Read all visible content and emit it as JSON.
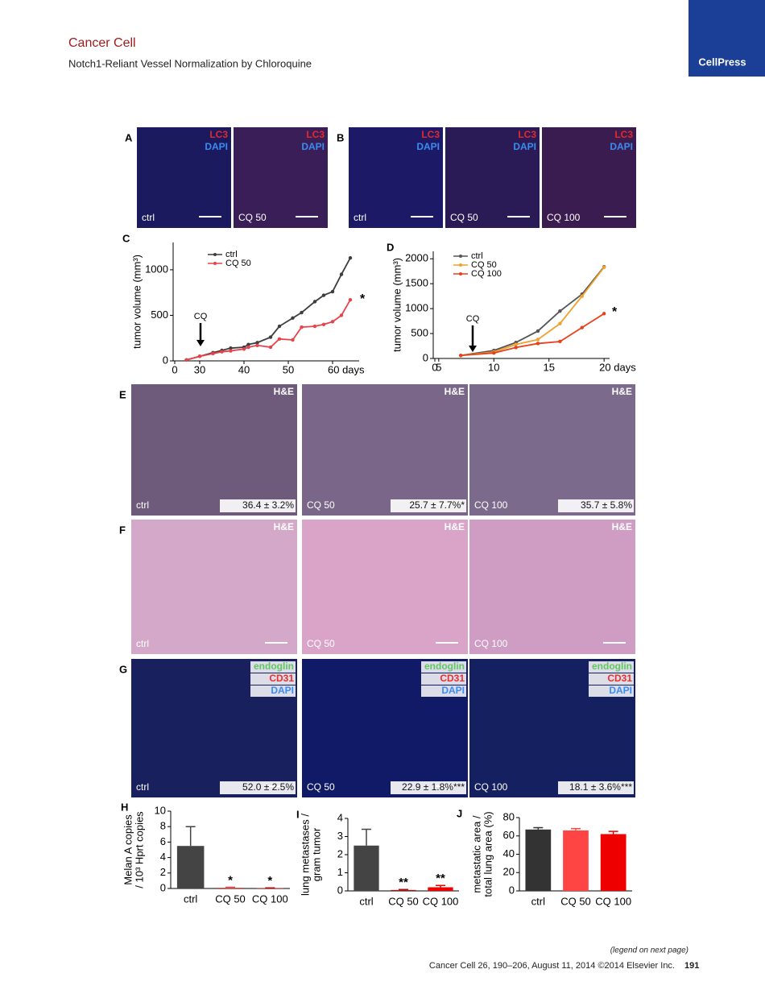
{
  "header": {
    "journal": "Cancer Cell",
    "title": "Notch1-Reliant Vessel Normalization by Chloroquine",
    "brand": "CellPress"
  },
  "panels": [
    {
      "letter": "A",
      "images": [
        {
          "stains": [
            "LC3",
            "DAPI"
          ],
          "label": "ctrl"
        },
        {
          "stains": [
            "LC3",
            "DAPI"
          ],
          "label": "CQ 50"
        }
      ]
    },
    {
      "letter": "B",
      "images": [
        {
          "stains": [
            "LC3",
            "DAPI"
          ],
          "label": "ctrl"
        },
        {
          "stains": [
            "LC3",
            "DAPI"
          ],
          "label": "CQ 50"
        },
        {
          "stains": [
            "LC3",
            "DAPI"
          ],
          "label": "CQ 100"
        }
      ]
    },
    {
      "letter": "E",
      "images": [
        {
          "stains": [
            "H&E"
          ],
          "label": "ctrl",
          "quant": "36.4 ± 3.2%"
        },
        {
          "stains": [
            "H&E"
          ],
          "label": "CQ 50",
          "quant": "25.7 ± 7.7%*"
        },
        {
          "stains": [
            "H&E"
          ],
          "label": "CQ 100",
          "quant": "35.7 ± 5.8%"
        }
      ]
    },
    {
      "letter": "F",
      "images": [
        {
          "stains": [
            "H&E"
          ],
          "label": "ctrl"
        },
        {
          "stains": [
            "H&E"
          ],
          "label": "CQ 50"
        },
        {
          "stains": [
            "H&E"
          ],
          "label": "CQ 100"
        }
      ]
    },
    {
      "letter": "G",
      "images": [
        {
          "stains": [
            "endoglin",
            "CD31",
            "DAPI"
          ],
          "label": "ctrl",
          "quant": "52.0 ± 2.5%"
        },
        {
          "stains": [
            "endoglin",
            "CD31",
            "DAPI"
          ],
          "label": "CQ 50",
          "quant": "22.9 ± 1.8%***"
        },
        {
          "stains": [
            "endoglin",
            "CD31",
            "DAPI"
          ],
          "label": "CQ 100",
          "quant": "18.1 ± 3.6%***"
        }
      ]
    }
  ],
  "chart_data": [
    {
      "type": "line",
      "panel": "C",
      "ylabel": [
        "tumor volume (mm³)"
      ],
      "legend": "upper left",
      "x": [
        27,
        30,
        33,
        35,
        37,
        40,
        41,
        43,
        46,
        48,
        51,
        53,
        56,
        58,
        60,
        62,
        64
      ],
      "xlim": [
        24,
        66
      ],
      "x_axis_break": true,
      "xticks": [
        0,
        30,
        40,
        50,
        {
          "value": 60,
          "label": "60 days"
        }
      ],
      "ylim": [
        0,
        1300
      ],
      "yticks": [
        0,
        500,
        1000
      ],
      "annotations": [
        "CQ",
        "*"
      ],
      "series": [
        {
          "name": "ctrl",
          "color": "#3d3d3d",
          "values": [
            10,
            50,
            90,
            115,
            140,
            150,
            180,
            200,
            260,
            380,
            470,
            530,
            650,
            720,
            760,
            950,
            1130
          ]
        },
        {
          "name": "CQ 50",
          "color": "#e8434a",
          "values": [
            10,
            50,
            80,
            100,
            110,
            130,
            150,
            170,
            150,
            240,
            230,
            370,
            380,
            400,
            430,
            500,
            670
          ]
        }
      ]
    },
    {
      "type": "line",
      "panel": "D",
      "ylabel": [
        "tumor volume (mm³)"
      ],
      "legend": "upper left",
      "x": [
        7,
        10,
        12,
        14,
        16,
        18,
        20
      ],
      "xlim": [
        4.5,
        20.5
      ],
      "x_axis_break": true,
      "xticks": [
        0,
        5,
        10,
        15,
        {
          "value": 20,
          "label": "20 days"
        }
      ],
      "ylim": [
        0,
        2150
      ],
      "yticks": [
        0,
        500,
        1000,
        1500,
        2000
      ],
      "annotations": [
        "CQ",
        "*"
      ],
      "series": [
        {
          "name": "ctrl",
          "color": "#555555",
          "values": [
            60,
            160,
            320,
            550,
            950,
            1290,
            1840
          ]
        },
        {
          "name": "CQ 50",
          "color": "#f0a030",
          "values": [
            60,
            130,
            280,
            380,
            700,
            1250,
            1830
          ]
        },
        {
          "name": "CQ 100",
          "color": "#e8401c",
          "values": [
            60,
            110,
            220,
            300,
            340,
            620,
            900
          ]
        }
      ]
    },
    {
      "type": "bar",
      "panel": "H",
      "ylabel": [
        "Melan A copies",
        "/ 10³ Hprt copies"
      ],
      "categories": [
        "ctrl",
        "CQ 50",
        "CQ 100"
      ],
      "values": [
        5.5,
        0.1,
        0.05
      ],
      "errors": [
        2.5,
        0.05,
        0.03
      ],
      "colors": [
        "#444444",
        "#ee4444",
        "#dd0000"
      ],
      "bar_annotations": [
        null,
        "*",
        "*"
      ],
      "ylim": [
        0,
        10
      ],
      "yticks": [
        0,
        2,
        4,
        6,
        8,
        10
      ]
    },
    {
      "type": "bar",
      "panel": "I",
      "ylabel": [
        "lung metastases /",
        "gram tumor"
      ],
      "categories": [
        "ctrl",
        "CQ 50",
        "CQ 100"
      ],
      "values": [
        2.5,
        0.05,
        0.2
      ],
      "errors": [
        0.9,
        0.03,
        0.1
      ],
      "colors": [
        "#444444",
        "#aa1111",
        "#ee0000"
      ],
      "bar_annotations": [
        null,
        "**",
        "**"
      ],
      "ylim": [
        0,
        4
      ],
      "yticks": [
        0,
        1,
        2,
        3,
        4
      ]
    },
    {
      "type": "bar",
      "panel": "J",
      "ylabel": [
        "metastatic area /",
        "total lung area (%)"
      ],
      "categories": [
        "ctrl",
        "CQ 50",
        "CQ 100"
      ],
      "values": [
        67,
        66,
        62
      ],
      "errors": [
        2,
        2,
        3
      ],
      "colors": [
        "#333333",
        "#ff4444",
        "#ee0000"
      ],
      "ylim": [
        0,
        80
      ],
      "yticks": [
        0,
        20,
        40,
        60,
        80
      ]
    }
  ],
  "footer": {
    "note": "(legend on next page)",
    "citation": "Cancer Cell 26, 190–206, August 11, 2014 ©2014 Elsevier Inc.",
    "page": "191"
  }
}
